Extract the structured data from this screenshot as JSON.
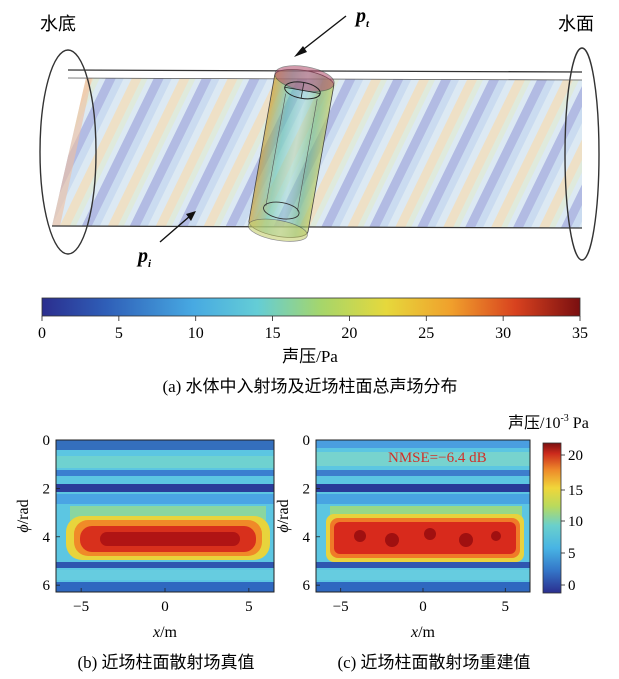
{
  "figure_a": {
    "label_left": "水底",
    "label_right": "水面",
    "label_pt": "p",
    "label_pt_sub": "t",
    "label_pi": "p",
    "label_pi_sub": "i",
    "colorbar_ticks": [
      "0",
      "5",
      "10",
      "15",
      "20",
      "25",
      "30",
      "35"
    ],
    "colorbar_label": "声压/Pa",
    "caption": "(a) 水体中入射场及近场柱面总声场分布"
  },
  "figure_b": {
    "ylabel_var": "ϕ",
    "ylabel_unit": "/rad",
    "xlabel_var": "x",
    "xlabel_unit": "/m",
    "yticks": [
      "0",
      "2",
      "4",
      "6"
    ],
    "xticks": [
      "−5",
      "0",
      "5"
    ],
    "caption": "(b) 近场柱面散射场真值"
  },
  "figure_c": {
    "ylabel_var": "ϕ",
    "ylabel_unit": "/rad",
    "xlabel_var": "x",
    "xlabel_unit": "/m",
    "yticks": [
      "0",
      "2",
      "4",
      "6"
    ],
    "xticks": [
      "−5",
      "0",
      "5"
    ],
    "nmse": "NMSE=−6.4 dB",
    "caption": "(c) 近场柱面散射场重建值"
  },
  "colorbar_bc": {
    "title": "声压/10",
    "title_sup": "-3",
    "title_unit": " Pa",
    "ticks": [
      "20",
      "15",
      "10",
      "5",
      "0"
    ]
  },
  "colors": {
    "jet_low": "#2a2a8c",
    "jet_mid": "#5fc8e0",
    "jet_high": "#b01818",
    "nmse_text": "#d0302a"
  }
}
